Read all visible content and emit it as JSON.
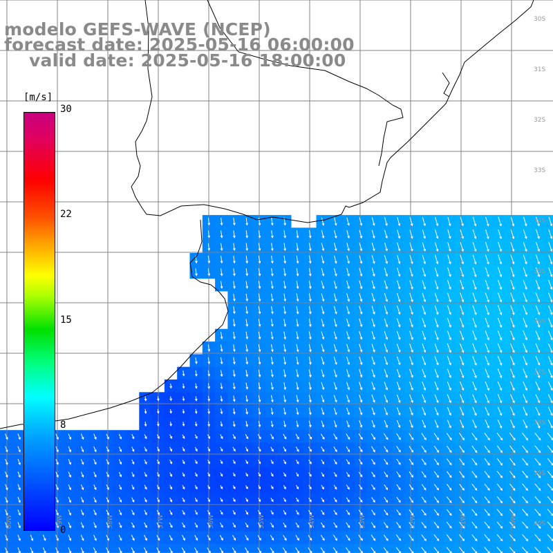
{
  "titles": {
    "model": "modelo GEFS-WAVE (NCEP)",
    "forecast": "forecast date: 2025-05-16 06:00:00",
    "valid": "valid date: 2025-05-16 18:00:00"
  },
  "colorbar": {
    "unit": "[m/s]",
    "ticks": [
      "30",
      "22",
      "15",
      "8",
      "0"
    ],
    "colors": [
      "#0000ff",
      "#00a0ff",
      "#00ffff",
      "#00ff7f",
      "#00e000",
      "#aaff00",
      "#ffff00",
      "#ffaa00",
      "#ff5000",
      "#ff0000",
      "#c8007f"
    ]
  },
  "map": {
    "land_color": "#ffffff",
    "grid_color": "#808080",
    "arrow_color": "#ffffff",
    "coast_color": "#000000",
    "right_lat_labels": [
      "30S",
      "31S",
      "32S",
      "33S",
      "34S",
      "35S",
      "36S",
      "37S",
      "38S",
      "39S",
      "40S"
    ],
    "bottom_lon_labels": [
      "60W",
      "59W",
      "58W",
      "57W",
      "56W",
      "55W",
      "54W",
      "53W",
      "52W",
      "51W",
      "50W"
    ]
  }
}
